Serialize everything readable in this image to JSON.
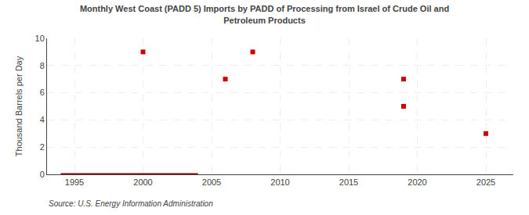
{
  "chart_data": {
    "type": "scatter",
    "title": "Monthly West Coast (PADD 5) Imports by PADD of Processing from Israel of Crude Oil and\nPetroleum Products",
    "ylabel": "Thousand Barrels per Day",
    "annotations": [
      "Source: U.S. Energy Information Administration"
    ],
    "series": [
      {
        "type": "line",
        "color": "#8b0000",
        "line_style": "solid",
        "x": [
          1994,
          2004
        ],
        "values": [
          0,
          0
        ]
      },
      {
        "type": "scatter",
        "color": "#cc0000",
        "marker": "square",
        "x": [
          2000,
          2006,
          2008,
          2019,
          2019,
          2025
        ],
        "values": [
          9,
          7,
          9,
          7,
          5,
          3
        ]
      }
    ],
    "xlim": [
      1993,
      2027
    ],
    "xticks": [
      1995,
      2000,
      2005,
      2010,
      2015,
      2020,
      2025
    ],
    "ylim": [
      0,
      10
    ],
    "yticks": [
      0,
      2,
      4,
      6,
      8,
      10
    ],
    "grid": true
  }
}
